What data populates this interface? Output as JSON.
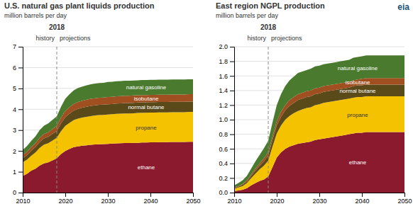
{
  "chart_data": [
    {
      "type": "area",
      "stacked": true,
      "grid": true,
      "title": "U.S. natural gas plant liquids production",
      "subtitle": "million barrels per day",
      "x": [
        2010,
        2011,
        2012,
        2013,
        2014,
        2015,
        2016,
        2017,
        2018,
        2019,
        2020,
        2021,
        2022,
        2023,
        2024,
        2025,
        2026,
        2027,
        2028,
        2029,
        2030,
        2031,
        2032,
        2033,
        2034,
        2035,
        2036,
        2037,
        2038,
        2039,
        2040,
        2041,
        2042,
        2043,
        2044,
        2045,
        2046,
        2047,
        2048,
        2049,
        2050
      ],
      "series": [
        {
          "name": "ethane",
          "color": "#8B1A2F",
          "values": [
            0.8,
            0.9,
            1.05,
            1.15,
            1.3,
            1.4,
            1.45,
            1.55,
            1.65,
            1.85,
            2.0,
            2.1,
            2.18,
            2.22,
            2.25,
            2.27,
            2.29,
            2.31,
            2.32,
            2.33,
            2.34,
            2.35,
            2.36,
            2.37,
            2.38,
            2.38,
            2.39,
            2.39,
            2.4,
            2.4,
            2.41,
            2.41,
            2.42,
            2.42,
            2.42,
            2.43,
            2.43,
            2.43,
            2.43,
            2.44,
            2.44
          ]
        },
        {
          "name": "propane",
          "color": "#F5C200",
          "values": [
            0.65,
            0.68,
            0.72,
            0.78,
            0.85,
            0.9,
            0.92,
            0.95,
            0.98,
            1.1,
            1.2,
            1.25,
            1.3,
            1.33,
            1.35,
            1.37,
            1.38,
            1.39,
            1.4,
            1.4,
            1.41,
            1.41,
            1.42,
            1.42,
            1.42,
            1.42,
            1.42,
            1.43,
            1.43,
            1.43,
            1.43,
            1.43,
            1.43,
            1.43,
            1.43,
            1.43,
            1.43,
            1.43,
            1.43,
            1.43,
            1.43
          ]
        },
        {
          "name": "normal butane",
          "color": "#5A4A1A",
          "values": [
            0.2,
            0.22,
            0.24,
            0.26,
            0.28,
            0.3,
            0.31,
            0.32,
            0.33,
            0.38,
            0.42,
            0.44,
            0.46,
            0.47,
            0.48,
            0.48,
            0.49,
            0.49,
            0.49,
            0.49,
            0.49,
            0.49,
            0.49,
            0.49,
            0.5,
            0.5,
            0.5,
            0.5,
            0.5,
            0.5,
            0.5,
            0.5,
            0.5,
            0.5,
            0.5,
            0.5,
            0.5,
            0.5,
            0.5,
            0.5,
            0.5
          ]
        },
        {
          "name": "isobutane",
          "color": "#A05020",
          "values": [
            0.15,
            0.16,
            0.17,
            0.18,
            0.2,
            0.21,
            0.22,
            0.23,
            0.24,
            0.27,
            0.3,
            0.31,
            0.32,
            0.33,
            0.33,
            0.34,
            0.34,
            0.34,
            0.34,
            0.34,
            0.35,
            0.35,
            0.35,
            0.35,
            0.35,
            0.35,
            0.35,
            0.35,
            0.35,
            0.35,
            0.35,
            0.35,
            0.35,
            0.35,
            0.35,
            0.35,
            0.35,
            0.35,
            0.35,
            0.35,
            0.35
          ]
        },
        {
          "name": "natural gasoline",
          "color": "#4A7A2E",
          "values": [
            0.25,
            0.27,
            0.3,
            0.33,
            0.38,
            0.4,
            0.42,
            0.44,
            0.46,
            0.52,
            0.58,
            0.62,
            0.65,
            0.67,
            0.68,
            0.69,
            0.7,
            0.7,
            0.71,
            0.71,
            0.72,
            0.72,
            0.72,
            0.72,
            0.72,
            0.72,
            0.72,
            0.72,
            0.72,
            0.72,
            0.72,
            0.72,
            0.72,
            0.72,
            0.72,
            0.72,
            0.72,
            0.72,
            0.72,
            0.72,
            0.72
          ]
        }
      ],
      "xlim": [
        2010,
        2050
      ],
      "xticks": [
        2010,
        2020,
        2030,
        2040,
        2050
      ],
      "ylim": [
        0,
        7
      ],
      "yticks": [
        0,
        1,
        2,
        3,
        4,
        5,
        6,
        7
      ],
      "annotations": [
        {
          "text": "2018",
          "x": 2018,
          "line_style": "dashed"
        },
        {
          "text": "history"
        },
        {
          "text": "projections"
        }
      ]
    },
    {
      "type": "area",
      "stacked": true,
      "grid": true,
      "title": "East region NGPL production",
      "subtitle": "million barrels per day",
      "x": [
        2010,
        2011,
        2012,
        2013,
        2014,
        2015,
        2016,
        2017,
        2018,
        2019,
        2020,
        2021,
        2022,
        2023,
        2024,
        2025,
        2026,
        2027,
        2028,
        2029,
        2030,
        2031,
        2032,
        2033,
        2034,
        2035,
        2036,
        2037,
        2038,
        2039,
        2040,
        2041,
        2042,
        2043,
        2044,
        2045,
        2046,
        2047,
        2048,
        2049,
        2050
      ],
      "series": [
        {
          "name": "ethane",
          "color": "#8B1A2F",
          "values": [
            0.02,
            0.03,
            0.04,
            0.06,
            0.1,
            0.13,
            0.16,
            0.18,
            0.22,
            0.35,
            0.48,
            0.55,
            0.6,
            0.63,
            0.65,
            0.67,
            0.68,
            0.69,
            0.7,
            0.72,
            0.73,
            0.74,
            0.75,
            0.76,
            0.77,
            0.78,
            0.79,
            0.8,
            0.81,
            0.82,
            0.82,
            0.83,
            0.83,
            0.83,
            0.83,
            0.83,
            0.83,
            0.83,
            0.83,
            0.83,
            0.83
          ]
        },
        {
          "name": "propane",
          "color": "#F5C200",
          "values": [
            0.03,
            0.04,
            0.05,
            0.07,
            0.1,
            0.13,
            0.16,
            0.19,
            0.22,
            0.28,
            0.33,
            0.37,
            0.4,
            0.42,
            0.44,
            0.45,
            0.46,
            0.47,
            0.47,
            0.48,
            0.48,
            0.49,
            0.49,
            0.49,
            0.49,
            0.49,
            0.49,
            0.49,
            0.49,
            0.49,
            0.49,
            0.49,
            0.49,
            0.49,
            0.49,
            0.49,
            0.49,
            0.49,
            0.49,
            0.49,
            0.49
          ]
        },
        {
          "name": "normal butane",
          "color": "#5A4A1A",
          "values": [
            0.01,
            0.01,
            0.02,
            0.02,
            0.03,
            0.04,
            0.05,
            0.06,
            0.07,
            0.09,
            0.11,
            0.12,
            0.13,
            0.14,
            0.14,
            0.15,
            0.15,
            0.15,
            0.15,
            0.15,
            0.15,
            0.15,
            0.15,
            0.15,
            0.15,
            0.15,
            0.15,
            0.15,
            0.16,
            0.16,
            0.16,
            0.16,
            0.16,
            0.16,
            0.16,
            0.16,
            0.16,
            0.16,
            0.16,
            0.16,
            0.16
          ]
        },
        {
          "name": "isobutane",
          "color": "#A05020",
          "values": [
            0.01,
            0.01,
            0.01,
            0.02,
            0.02,
            0.03,
            0.03,
            0.04,
            0.04,
            0.05,
            0.06,
            0.07,
            0.07,
            0.08,
            0.08,
            0.08,
            0.08,
            0.08,
            0.08,
            0.08,
            0.08,
            0.08,
            0.08,
            0.08,
            0.08,
            0.08,
            0.08,
            0.08,
            0.08,
            0.08,
            0.09,
            0.09,
            0.09,
            0.09,
            0.09,
            0.09,
            0.09,
            0.09,
            0.09,
            0.09,
            0.09
          ]
        },
        {
          "name": "natural gasoline",
          "color": "#4A7A2E",
          "values": [
            0.03,
            0.04,
            0.05,
            0.06,
            0.08,
            0.1,
            0.12,
            0.14,
            0.16,
            0.19,
            0.22,
            0.24,
            0.26,
            0.27,
            0.28,
            0.29,
            0.29,
            0.29,
            0.3,
            0.3,
            0.3,
            0.3,
            0.3,
            0.3,
            0.3,
            0.3,
            0.3,
            0.3,
            0.31,
            0.31,
            0.31,
            0.31,
            0.31,
            0.31,
            0.31,
            0.31,
            0.31,
            0.31,
            0.31,
            0.31,
            0.31
          ]
        }
      ],
      "xlim": [
        2010,
        2050
      ],
      "xticks": [
        2010,
        2020,
        2030,
        2040,
        2050
      ],
      "ylim": [
        0,
        2
      ],
      "yticks": [
        {
          "value": 0,
          "label": "0.0"
        },
        0.2,
        0.4,
        0.6,
        0.8,
        {
          "value": 1.0,
          "label": "1.0"
        },
        1.2,
        1.4,
        1.6,
        1.8,
        {
          "value": 2.0,
          "label": "2.0"
        }
      ],
      "annotations": [
        {
          "text": "2018",
          "x": 2018,
          "line_style": "dashed"
        },
        {
          "text": "history"
        },
        {
          "text": "projections"
        },
        {
          "text": "eia"
        }
      ]
    }
  ]
}
